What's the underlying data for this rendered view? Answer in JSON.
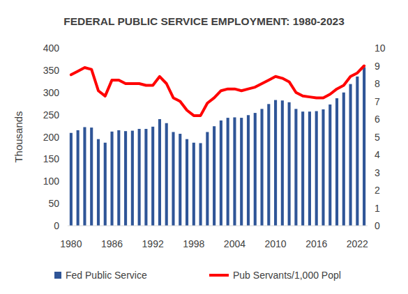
{
  "chart_data": {
    "type": "bar",
    "title": "FEDERAL PUBLIC SERVICE EMPLOYMENT: 1980-2023",
    "y_label": "Thousands",
    "categories": [
      "1980",
      null,
      null,
      null,
      null,
      null,
      "1986",
      null,
      null,
      null,
      null,
      null,
      "1992",
      null,
      null,
      null,
      null,
      null,
      "1998",
      null,
      null,
      null,
      null,
      null,
      "2004",
      null,
      null,
      null,
      null,
      null,
      "2010",
      null,
      null,
      null,
      null,
      null,
      "2016",
      null,
      null,
      null,
      null,
      null,
      "2022",
      null
    ],
    "series": [
      {
        "name": "Fed Public Service",
        "type": "bar",
        "color": "#2f5597",
        "values": [
          209,
          215,
          222,
          221,
          195,
          187,
          212,
          215,
          213,
          214,
          218,
          218,
          223,
          240,
          231,
          211,
          207,
          195,
          187,
          186,
          211,
          224,
          237,
          243,
          244,
          243,
          249,
          254,
          263,
          274,
          283,
          282,
          278,
          263,
          257,
          257,
          258,
          262,
          273,
          287,
          300,
          319,
          336,
          357
        ]
      },
      {
        "name": "Pub Servants/1,000 Popl",
        "type": "line",
        "axis": "y2",
        "color": "#ff0000",
        "values": [
          8.5,
          8.7,
          8.9,
          8.8,
          7.6,
          7.3,
          8.2,
          8.2,
          8.0,
          8.0,
          8.0,
          7.9,
          7.9,
          8.4,
          8.0,
          7.2,
          7.0,
          6.5,
          6.2,
          6.2,
          6.9,
          7.2,
          7.6,
          7.7,
          7.7,
          7.6,
          7.7,
          7.8,
          8.0,
          8.2,
          8.4,
          8.3,
          8.1,
          7.5,
          7.3,
          7.25,
          7.2,
          7.2,
          7.4,
          7.7,
          7.9,
          8.4,
          8.6,
          9.0
        ]
      }
    ],
    "ylim": [
      0,
      400
    ],
    "yticks": [
      0,
      50,
      100,
      150,
      200,
      250,
      300,
      350,
      400
    ],
    "y2lim": [
      0,
      10
    ],
    "y2ticks": [
      0,
      1,
      2,
      3,
      4,
      5,
      6,
      7,
      8,
      9,
      10
    ],
    "grid": false,
    "legend": "bottom"
  }
}
